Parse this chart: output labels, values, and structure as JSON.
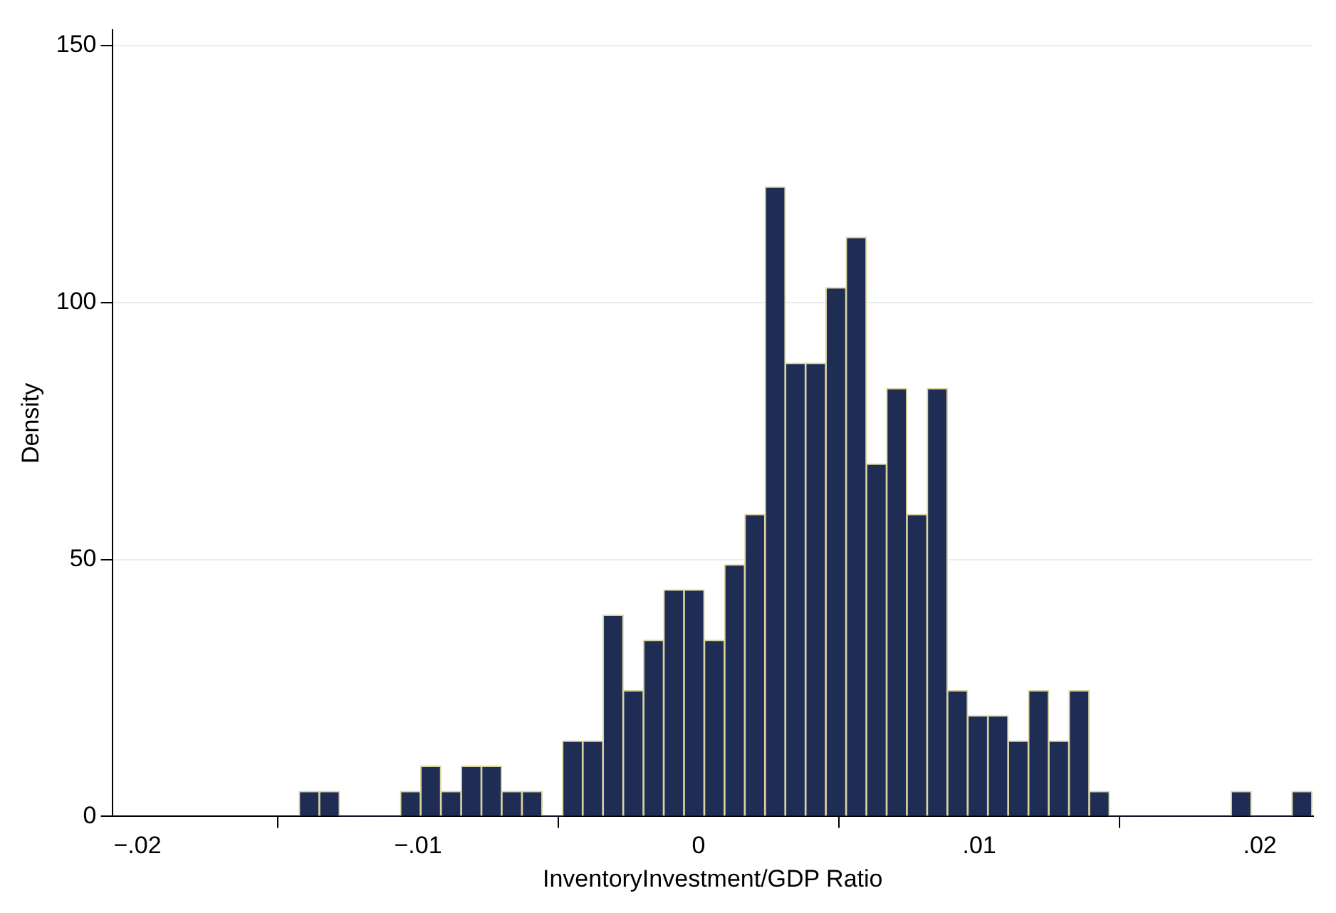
{
  "chart_data": {
    "type": "histogram",
    "xlabel": "InventoryInvestment/GDP Ratio",
    "ylabel": "Density",
    "bins": [
      -0.01424,
      -0.013518,
      -0.012796,
      -0.012074,
      -0.011352,
      -0.01063,
      -0.009908,
      -0.009186,
      -0.008464,
      -0.007742,
      -0.00702,
      -0.006298,
      -0.005576,
      -0.004854,
      -0.004132,
      -0.00341,
      -0.002688,
      -0.001966,
      -0.001244,
      -0.000522,
      0.0002,
      0.000922,
      0.001644,
      0.002366,
      0.003088,
      0.00381,
      0.004532,
      0.005254,
      0.005976,
      0.006698,
      0.00742,
      0.008142,
      0.008864,
      0.009586,
      0.010308,
      0.01103,
      0.011752,
      0.012474,
      0.013196,
      0.013918,
      0.01464,
      0.015362,
      0.016084,
      0.016806,
      0.017528,
      0.01825,
      0.018972,
      0.019694,
      0.020416,
      0.021138,
      0.02186
    ],
    "values": [
      4.9,
      4.9,
      0,
      0,
      0,
      4.9,
      9.8,
      4.9,
      9.8,
      9.8,
      4.9,
      4.9,
      0,
      14.7,
      14.7,
      39.2,
      24.5,
      34.3,
      44.1,
      44.1,
      34.3,
      49,
      58.8,
      122.5,
      88.2,
      88.2,
      102.9,
      112.7,
      68.6,
      83.3,
      58.8,
      83.3,
      24.5,
      19.6,
      19.6,
      14.7,
      24.5,
      14.7,
      24.5,
      4.9,
      0,
      0,
      0,
      0,
      0,
      0,
      4.9,
      0,
      0,
      4.9
    ],
    "color": "#1f2c54",
    "xlim": [
      -0.0209,
      0.0219
    ],
    "xticks": [
      {
        "value": -0.02,
        "label": "−.02"
      },
      {
        "value": -0.01,
        "label": "−.01"
      },
      0,
      {
        "value": 0.01,
        "label": ".01"
      },
      {
        "value": 0.02,
        "label": ".02"
      }
    ],
    "ylim": [
      0,
      153
    ],
    "yticks": [
      0,
      50,
      100,
      150
    ],
    "grid": "y"
  }
}
